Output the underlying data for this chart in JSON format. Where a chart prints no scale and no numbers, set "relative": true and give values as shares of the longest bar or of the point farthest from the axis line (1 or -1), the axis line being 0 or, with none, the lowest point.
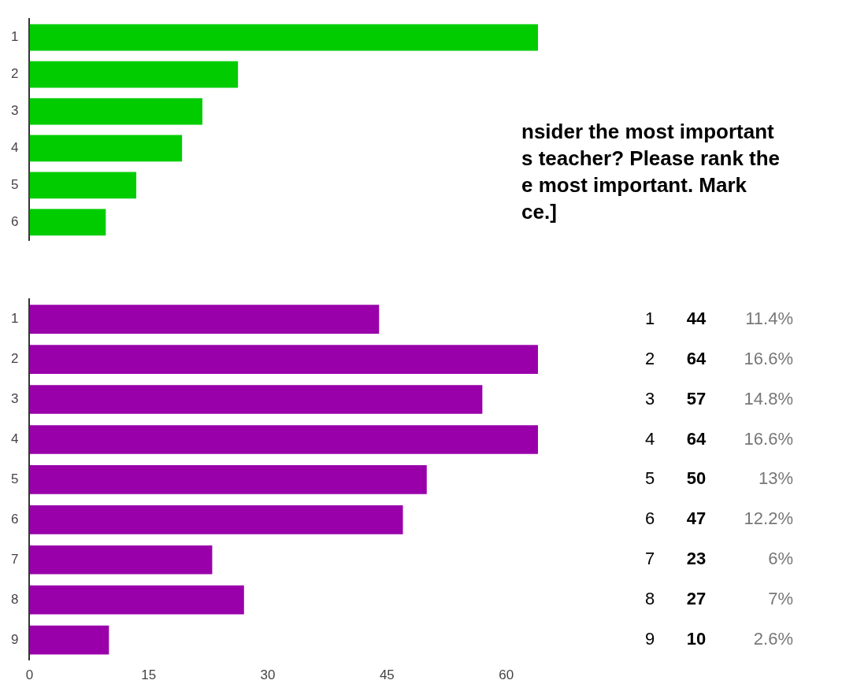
{
  "chart_data": [
    {
      "type": "bar",
      "orientation": "horizontal",
      "relative": true,
      "categories": [
        "1",
        "2",
        "3",
        "4",
        "5",
        "6"
      ],
      "values": [
        1,
        0.41,
        0.34,
        0.3,
        0.21,
        0.15
      ],
      "color": "#00cc00"
    },
    {
      "type": "bar",
      "orientation": "horizontal",
      "title": "nsider the most important\ns teacher? Please rank the\ne most important. Mark\nce.]",
      "categories": [
        "1",
        "2",
        "3",
        "4",
        "5",
        "6",
        "7",
        "8",
        "9"
      ],
      "values": [
        44,
        64,
        57,
        64,
        50,
        47,
        23,
        27,
        10
      ],
      "color": "#9900aa",
      "xlim": [
        0,
        64
      ],
      "xticks": [
        0,
        15,
        30,
        45,
        60
      ],
      "data_labels": true,
      "annotations": [
        "11.4%",
        "16.6%",
        "14.8%",
        "16.6%",
        "13%",
        "12.2%",
        "6%",
        "7%",
        "2.6%"
      ]
    }
  ]
}
